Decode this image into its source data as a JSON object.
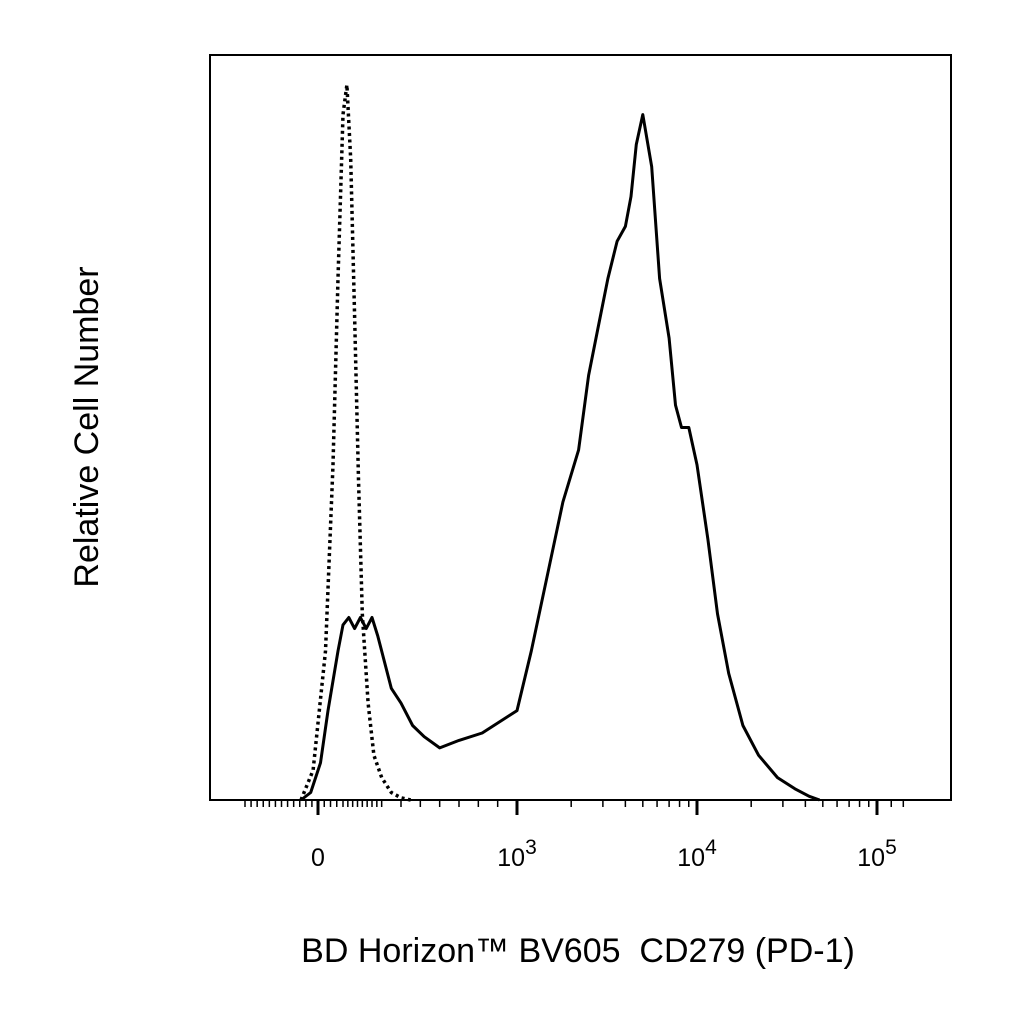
{
  "chart_data": {
    "type": "line",
    "title": "",
    "xlabel": "BD Horizon™ BV605  CD279 (PD-1)",
    "ylabel": "Relative Cell Number",
    "x_scale": "biexponential",
    "xlim": [
      -300,
      150000
    ],
    "ylim": [
      0,
      100
    ],
    "grid": false,
    "legend": "none",
    "x_tick_labels": [
      {
        "value": 0,
        "base": "0",
        "exp": ""
      },
      {
        "value": 1000,
        "base": "10",
        "exp": "3"
      },
      {
        "value": 10000,
        "base": "10",
        "exp": "4"
      },
      {
        "value": 100000,
        "base": "10",
        "exp": "5"
      }
    ],
    "series": [
      {
        "style": "dashed",
        "color": "#000000",
        "x": [
          -70,
          -20,
          30,
          60,
          80,
          100,
          120,
          140,
          160,
          180,
          200,
          230,
          260,
          300,
          350,
          400,
          450
        ],
        "y": [
          0,
          4,
          20,
          45,
          70,
          92,
          96,
          86,
          65,
          43,
          25,
          13,
          6,
          3,
          1,
          0.3,
          0
        ],
        "label": ""
      },
      {
        "style": "solid",
        "color": "#000000",
        "x": [
          -70,
          -30,
          10,
          40,
          80,
          100,
          130,
          160,
          190,
          220,
          250,
          280,
          310,
          350,
          400,
          460,
          520,
          600,
          700,
          820,
          1000,
          1200,
          1500,
          1800,
          2200,
          2500,
          2800,
          3200,
          3600,
          4000,
          4300,
          4600,
          5000,
          5600,
          6200,
          7000,
          7600,
          8200,
          9000,
          10000,
          11500,
          13000,
          15000,
          18000,
          22000,
          28000,
          35000,
          42000,
          48000
        ],
        "y": [
          0,
          1,
          5,
          12,
          20,
          23.5,
          24.5,
          23,
          24.5,
          23,
          24.5,
          22,
          19,
          15,
          13,
          10,
          8.5,
          7,
          8,
          9,
          12,
          20,
          31,
          40,
          47,
          57,
          63,
          70,
          75,
          77,
          81,
          88,
          92,
          85,
          70,
          62,
          53,
          50,
          50,
          45,
          35,
          25,
          17,
          10,
          6,
          3,
          1.5,
          0.5,
          0
        ],
        "label": ""
      }
    ]
  }
}
